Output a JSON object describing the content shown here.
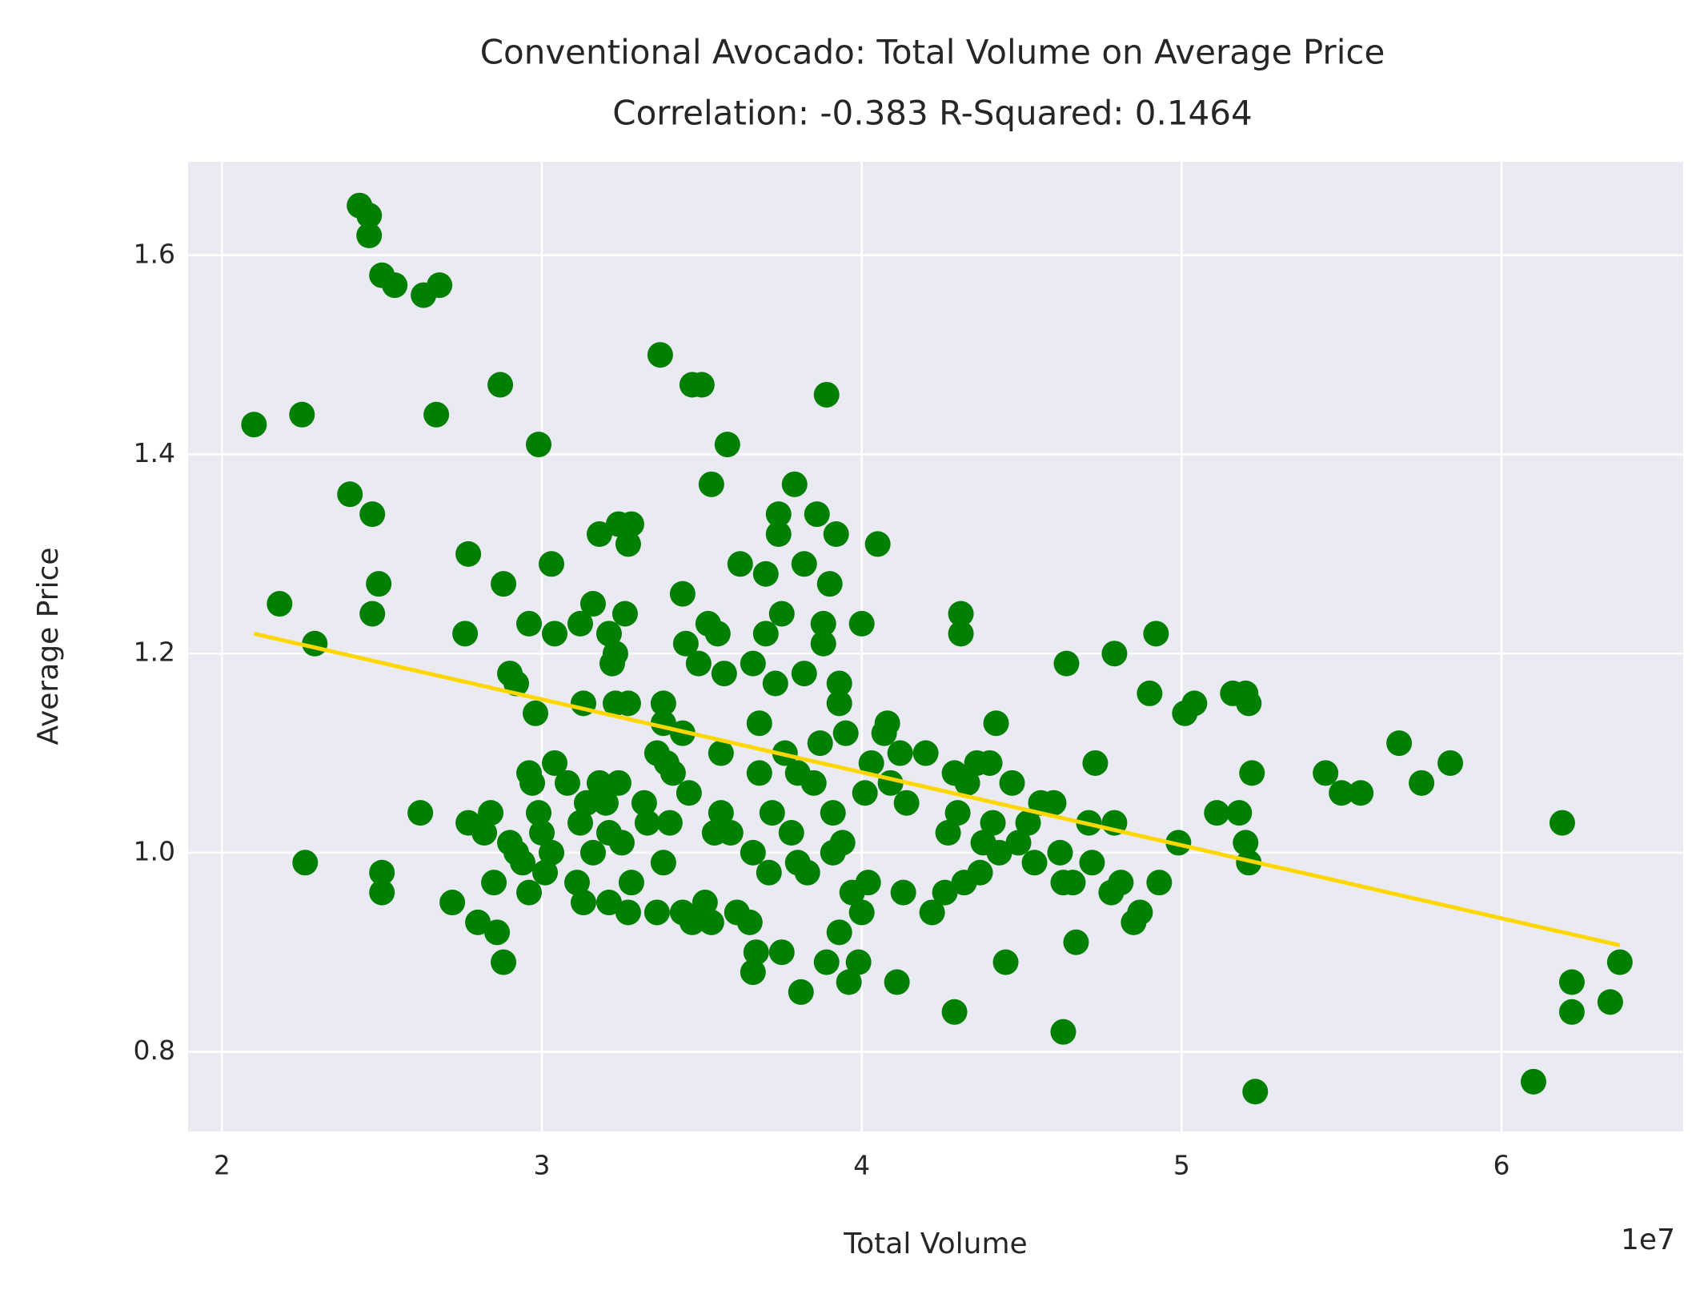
{
  "chart_data": {
    "type": "scatter",
    "title": "Conventional Avocado: Total Volume on Average Price",
    "subtitle": "Correlation: -0.383  R-Squared: 0.1464",
    "xlabel": "Total Volume",
    "ylabel": "Average Price",
    "x_offset_label": "1e7",
    "color": "#008000",
    "grid": true,
    "xlim": [
      18940000,
      65680000
    ],
    "ylim": [
      0.72,
      1.694
    ],
    "xticks": [
      {
        "value": 20000000,
        "label": "2"
      },
      {
        "value": 30000000,
        "label": "3"
      },
      {
        "value": 40000000,
        "label": "4"
      },
      {
        "value": 50000000,
        "label": "5"
      },
      {
        "value": 60000000,
        "label": "6"
      }
    ],
    "yticks": [
      0.8,
      {
        "value": 1,
        "label": "1.0"
      },
      1.2,
      1.4,
      1.6
    ],
    "x": [
      21000000,
      22500000,
      21800000,
      22900000,
      22600000,
      24300000,
      24600000,
      24600000,
      25000000,
      25400000,
      26300000,
      26800000,
      26700000,
      24000000,
      24700000,
      24900000,
      24700000,
      27700000,
      27600000,
      28700000,
      28800000,
      29000000,
      29200000,
      29900000,
      29600000,
      30300000,
      30400000,
      29800000,
      26200000,
      25000000,
      25000000,
      27200000,
      27700000,
      28000000,
      28200000,
      28400000,
      28500000,
      28600000,
      28800000,
      29000000,
      29200000,
      29400000,
      29600000,
      29600000,
      29700000,
      29900000,
      30000000,
      30100000,
      30300000,
      30400000,
      30800000,
      31100000,
      31200000,
      31300000,
      31400000,
      31600000,
      31800000,
      32000000,
      32100000,
      32100000,
      32400000,
      32500000,
      32700000,
      32800000,
      33200000,
      33300000,
      33600000,
      33800000,
      34000000,
      31300000,
      31600000,
      31200000,
      31800000,
      32100000,
      32200000,
      32300000,
      32600000,
      32400000,
      32700000,
      32800000,
      32700000,
      32300000,
      33700000,
      33800000,
      33800000,
      33600000,
      33900000,
      34100000,
      34400000,
      34400000,
      34500000,
      34600000,
      34700000,
      35000000,
      34900000,
      35200000,
      35300000,
      35500000,
      35600000,
      35700000,
      35800000,
      34400000,
      34700000,
      35100000,
      35300000,
      35400000,
      35600000,
      35900000,
      36100000,
      36200000,
      36500000,
      36600000,
      36600000,
      36700000,
      36600000,
      36800000,
      36800000,
      37000000,
      37000000,
      37100000,
      37200000,
      37300000,
      37400000,
      37400000,
      37500000,
      37500000,
      37600000,
      37800000,
      37900000,
      38000000,
      38000000,
      38100000,
      38200000,
      38200000,
      38300000,
      38500000,
      38600000,
      38700000,
      38800000,
      38800000,
      38900000,
      38900000,
      39000000,
      39100000,
      39100000,
      39200000,
      39300000,
      39300000,
      39300000,
      39400000,
      39500000,
      39600000,
      39700000,
      39900000,
      40000000,
      40000000,
      40100000,
      40200000,
      40300000,
      40500000,
      40700000,
      40800000,
      40900000,
      41100000,
      41200000,
      41300000,
      41400000,
      42000000,
      42200000,
      42600000,
      42700000,
      42900000,
      42900000,
      43000000,
      43100000,
      43100000,
      43200000,
      43300000,
      43600000,
      43700000,
      43800000,
      44000000,
      44100000,
      44200000,
      44300000,
      44500000,
      44700000,
      44900000,
      45200000,
      45400000,
      45600000,
      46000000,
      46200000,
      46300000,
      46300000,
      46400000,
      46600000,
      46700000,
      47100000,
      47200000,
      47300000,
      47800000,
      47900000,
      47900000,
      48100000,
      48500000,
      48700000,
      49000000,
      49200000,
      49300000,
      49900000,
      50100000,
      50400000,
      51100000,
      51600000,
      51800000,
      52000000,
      52000000,
      52100000,
      52100000,
      52200000,
      52300000,
      54500000,
      55000000,
      55600000,
      56800000,
      57500000,
      58400000,
      61000000,
      61900000,
      62200000,
      62200000,
      63400000,
      63700000
    ],
    "values": [
      1.43,
      1.44,
      1.25,
      1.21,
      0.99,
      1.65,
      1.64,
      1.62,
      1.58,
      1.57,
      1.56,
      1.57,
      1.44,
      1.36,
      1.34,
      1.27,
      1.24,
      1.3,
      1.22,
      1.47,
      1.27,
      1.18,
      1.17,
      1.41,
      1.23,
      1.29,
      1.22,
      1.14,
      1.04,
      0.98,
      0.96,
      0.95,
      1.03,
      0.93,
      1.02,
      1.04,
      0.97,
      0.92,
      0.89,
      1.01,
      1,
      0.99,
      0.96,
      1.08,
      1.07,
      1.04,
      1.02,
      0.98,
      1,
      1.09,
      1.07,
      0.97,
      1.03,
      0.95,
      1.05,
      1,
      1.07,
      1.05,
      0.95,
      1.02,
      1.07,
      1.01,
      0.94,
      0.97,
      1.05,
      1.03,
      0.94,
      0.99,
      1.03,
      1.15,
      1.25,
      1.23,
      1.32,
      1.22,
      1.19,
      1.2,
      1.24,
      1.33,
      1.31,
      1.33,
      1.15,
      1.15,
      1.5,
      1.15,
      1.13,
      1.1,
      1.09,
      1.08,
      1.12,
      1.26,
      1.21,
      1.06,
      1.47,
      1.47,
      1.19,
      1.23,
      1.37,
      1.22,
      1.1,
      1.18,
      1.41,
      0.94,
      0.93,
      0.95,
      0.93,
      1.02,
      1.04,
      1.02,
      0.94,
      1.29,
      0.93,
      1,
      0.88,
      0.9,
      1.19,
      1.13,
      1.08,
      1.22,
      1.28,
      0.98,
      1.04,
      1.17,
      1.34,
      1.32,
      1.24,
      0.9,
      1.1,
      1.02,
      1.37,
      1.08,
      0.99,
      0.86,
      1.29,
      1.18,
      0.98,
      1.07,
      1.34,
      1.11,
      1.23,
      1.21,
      0.89,
      1.46,
      1.27,
      1.04,
      1,
      1.32,
      1.17,
      1.15,
      0.92,
      1.01,
      1.12,
      0.87,
      0.96,
      0.89,
      1.23,
      0.94,
      1.06,
      0.97,
      1.09,
      1.31,
      1.12,
      1.13,
      1.07,
      0.87,
      1.1,
      0.96,
      1.05,
      1.1,
      0.94,
      0.96,
      1.02,
      0.84,
      1.08,
      1.04,
      1.24,
      1.22,
      0.97,
      1.07,
      1.09,
      0.98,
      1.01,
      1.09,
      1.03,
      1.13,
      1,
      0.89,
      1.07,
      1.01,
      1.03,
      0.99,
      1.05,
      1.05,
      1,
      0.97,
      0.82,
      1.19,
      0.97,
      0.91,
      1.03,
      0.99,
      1.09,
      0.96,
      1.2,
      1.03,
      0.97,
      0.93,
      0.94,
      1.16,
      1.22,
      0.97,
      1.01,
      1.14,
      1.15,
      1.04,
      1.16,
      1.04,
      1.16,
      1.01,
      1.15,
      0.99,
      1.08,
      0.76,
      1.08,
      1.06,
      1.06,
      1.11,
      1.07,
      1.09,
      0.77,
      1.03,
      0.87,
      0.84,
      0.85,
      0.89
    ],
    "fit": {
      "type": "line",
      "x": [
        21000000,
        63700000
      ],
      "values": [
        1.22,
        0.907
      ],
      "color": "#ffd700"
    }
  }
}
